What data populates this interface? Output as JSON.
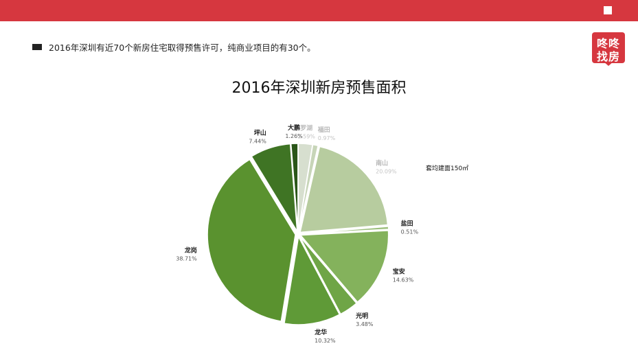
{
  "header": {
    "bullet_text": "2016年深圳有近70个新房住宅取得预售许可，纯商业项目的有30个。"
  },
  "logo": {
    "line1": "咚咚",
    "line2": "找房"
  },
  "note": "套均建面150㎡",
  "chart_data": {
    "type": "pie",
    "title": "2016年深圳新房预售面积",
    "slices": [
      {
        "label": "罗湖",
        "value": 2.59,
        "pct": "2.59%",
        "color": "#d7dfcf"
      },
      {
        "label": "福田",
        "value": 0.97,
        "pct": "0.97%",
        "color": "#c7d5b8"
      },
      {
        "label": "南山",
        "value": 20.09,
        "pct": "20.09%",
        "color": "#b7cc9f"
      },
      {
        "label": "盐田",
        "value": 0.51,
        "pct": "0.51%",
        "color": "#9cbf7c"
      },
      {
        "label": "宝安",
        "value": 14.63,
        "pct": "14.63%",
        "color": "#84b25c"
      },
      {
        "label": "光明",
        "value": 3.48,
        "pct": "3.48%",
        "color": "#6fa546"
      },
      {
        "label": "龙华",
        "value": 10.32,
        "pct": "10.32%",
        "color": "#5f9a37"
      },
      {
        "label": "龙岗",
        "value": 38.71,
        "pct": "38.71%",
        "color": "#5a922f"
      },
      {
        "label": "坪山",
        "value": 7.44,
        "pct": "7.44%",
        "color": "#3f7424"
      },
      {
        "label": "大鹏",
        "value": 1.26,
        "pct": "1.26%",
        "color": "#2a5618"
      }
    ]
  }
}
